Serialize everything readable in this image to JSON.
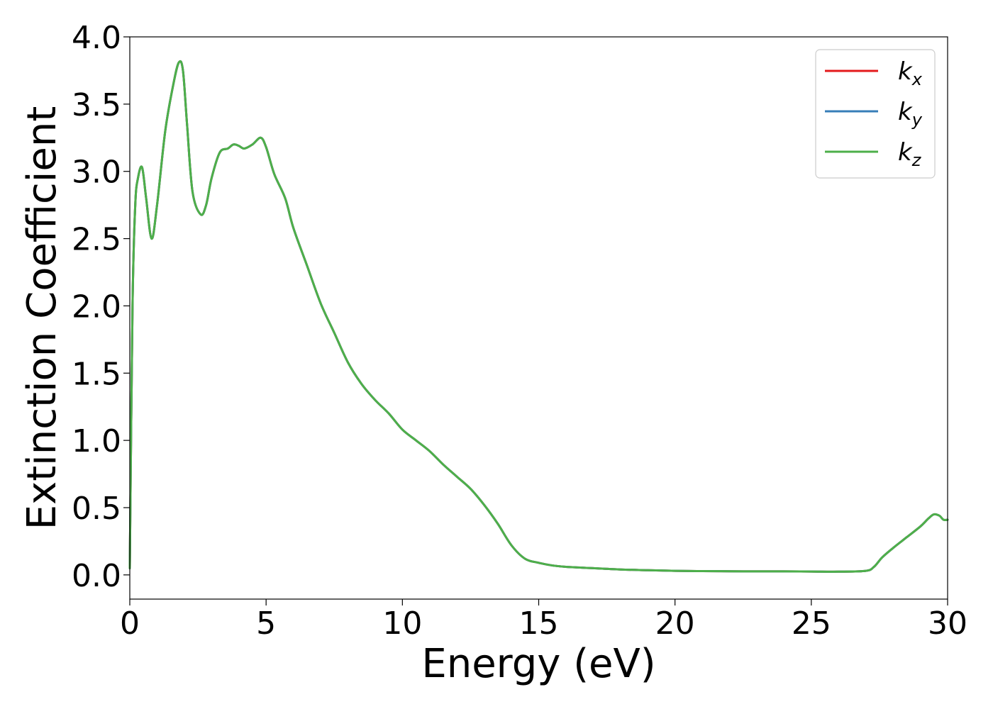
{
  "chart_data": {
    "type": "line",
    "title": "",
    "xlabel": "Energy (eV)",
    "ylabel": "Extinction Coefficient",
    "xlim": [
      0,
      30
    ],
    "ylim": [
      -0.18,
      4.0
    ],
    "xticks": [
      0,
      5,
      10,
      15,
      20,
      25,
      30
    ],
    "yticks": [
      0.0,
      0.5,
      1.0,
      1.5,
      2.0,
      2.5,
      3.0,
      3.5,
      4.0
    ],
    "xtick_labels": [
      "0",
      "5",
      "10",
      "15",
      "20",
      "25",
      "30"
    ],
    "ytick_labels": [
      "0.0",
      "0.5",
      "1.0",
      "1.5",
      "2.0",
      "2.5",
      "3.0",
      "3.5",
      "4.0"
    ],
    "grid": false,
    "legend_position": "top-right",
    "x": [
      0.0,
      0.1,
      0.2,
      0.3,
      0.45,
      0.6,
      0.8,
      1.0,
      1.3,
      1.6,
      1.8,
      1.95,
      2.1,
      2.3,
      2.6,
      2.8,
      3.0,
      3.3,
      3.6,
      3.8,
      4.0,
      4.2,
      4.5,
      4.8,
      5.0,
      5.3,
      5.7,
      6.0,
      6.5,
      7.0,
      7.5,
      8.0,
      8.5,
      9.0,
      9.5,
      10.0,
      10.5,
      11.0,
      11.5,
      12.0,
      12.5,
      13.0,
      13.5,
      14.0,
      14.5,
      15.0,
      15.5,
      16.0,
      17.0,
      18.0,
      19.0,
      20.0,
      21.0,
      22.0,
      23.0,
      24.0,
      25.0,
      26.0,
      27.0,
      27.3,
      27.6,
      28.0,
      28.5,
      29.0,
      29.3,
      29.5,
      29.7,
      29.85,
      30.0
    ],
    "series": [
      {
        "name": "k_x",
        "label_main": "k",
        "label_sub": "x",
        "color": "#e41a1c",
        "values": [
          0.05,
          2.0,
          2.75,
          2.95,
          3.03,
          2.8,
          2.5,
          2.75,
          3.3,
          3.65,
          3.81,
          3.75,
          3.35,
          2.85,
          2.68,
          2.75,
          2.95,
          3.14,
          3.17,
          3.2,
          3.19,
          3.17,
          3.2,
          3.25,
          3.18,
          2.98,
          2.8,
          2.58,
          2.3,
          2.02,
          1.8,
          1.58,
          1.42,
          1.3,
          1.2,
          1.08,
          1.0,
          0.92,
          0.82,
          0.73,
          0.64,
          0.52,
          0.38,
          0.22,
          0.12,
          0.09,
          0.07,
          0.06,
          0.05,
          0.04,
          0.035,
          0.03,
          0.028,
          0.027,
          0.026,
          0.026,
          0.025,
          0.024,
          0.03,
          0.06,
          0.13,
          0.2,
          0.28,
          0.36,
          0.42,
          0.45,
          0.44,
          0.41,
          0.41
        ]
      },
      {
        "name": "k_y",
        "label_main": "k",
        "label_sub": "y",
        "color": "#377eb8",
        "values": [
          0.05,
          2.0,
          2.75,
          2.95,
          3.03,
          2.8,
          2.5,
          2.75,
          3.3,
          3.65,
          3.81,
          3.75,
          3.35,
          2.85,
          2.68,
          2.75,
          2.95,
          3.14,
          3.17,
          3.2,
          3.19,
          3.17,
          3.2,
          3.25,
          3.18,
          2.98,
          2.8,
          2.58,
          2.3,
          2.02,
          1.8,
          1.58,
          1.42,
          1.3,
          1.2,
          1.08,
          1.0,
          0.92,
          0.82,
          0.73,
          0.64,
          0.52,
          0.38,
          0.22,
          0.12,
          0.09,
          0.07,
          0.06,
          0.05,
          0.04,
          0.035,
          0.03,
          0.028,
          0.027,
          0.026,
          0.026,
          0.025,
          0.024,
          0.03,
          0.06,
          0.13,
          0.2,
          0.28,
          0.36,
          0.42,
          0.45,
          0.44,
          0.41,
          0.41
        ]
      },
      {
        "name": "k_z",
        "label_main": "k",
        "label_sub": "z",
        "color": "#4daf4a",
        "values": [
          0.05,
          2.0,
          2.75,
          2.95,
          3.03,
          2.8,
          2.5,
          2.75,
          3.3,
          3.65,
          3.81,
          3.75,
          3.35,
          2.85,
          2.68,
          2.75,
          2.95,
          3.14,
          3.17,
          3.2,
          3.19,
          3.17,
          3.2,
          3.25,
          3.18,
          2.98,
          2.8,
          2.58,
          2.3,
          2.02,
          1.8,
          1.58,
          1.42,
          1.3,
          1.2,
          1.08,
          1.0,
          0.92,
          0.82,
          0.73,
          0.64,
          0.52,
          0.38,
          0.22,
          0.12,
          0.09,
          0.07,
          0.06,
          0.05,
          0.04,
          0.035,
          0.03,
          0.028,
          0.027,
          0.026,
          0.026,
          0.025,
          0.024,
          0.03,
          0.06,
          0.13,
          0.2,
          0.28,
          0.36,
          0.42,
          0.45,
          0.44,
          0.41,
          0.41
        ]
      }
    ]
  }
}
